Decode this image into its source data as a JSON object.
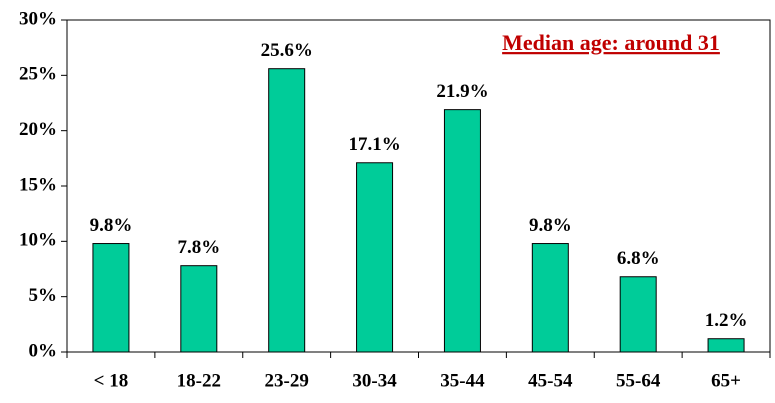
{
  "chart_data": {
    "type": "bar",
    "categories": [
      "< 18",
      "18-22",
      "23-29",
      "30-34",
      "35-44",
      "45-54",
      "55-64",
      "65+"
    ],
    "values": [
      9.8,
      7.8,
      25.6,
      17.1,
      21.9,
      9.8,
      6.8,
      1.2
    ],
    "value_labels": [
      "9.8%",
      "7.8%",
      "25.6%",
      "17.1%",
      "21.9%",
      "9.8%",
      "6.8%",
      "1.2%"
    ],
    "color": "#00cc99",
    "ylim": [
      0,
      30
    ],
    "yticks": [
      {
        "value": 0,
        "label": "0%"
      },
      {
        "value": 5,
        "label": "5%"
      },
      {
        "value": 10,
        "label": "10%"
      },
      {
        "value": 15,
        "label": "15%"
      },
      {
        "value": 20,
        "label": "20%"
      },
      {
        "value": 25,
        "label": "25%"
      },
      {
        "value": 30,
        "label": "30%"
      }
    ],
    "annotation": "Median age: around 31",
    "grid": false
  }
}
